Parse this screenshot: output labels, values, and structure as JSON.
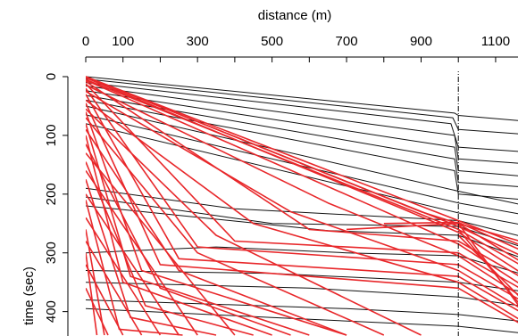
{
  "chart_data": {
    "type": "line",
    "title": "",
    "xlabel": "distance (m)",
    "ylabel": "time (sec)",
    "xlim": [
      0,
      1220
    ],
    "ylim": [
      0,
      440
    ],
    "y_inverted": true,
    "x_axis_position": "top",
    "x_ticks": [
      0,
      100,
      300,
      500,
      700,
      900,
      1100
    ],
    "x_minor_ticks": [
      0,
      100,
      200,
      300,
      400,
      500,
      600,
      700,
      800,
      900,
      1000,
      1100,
      1200
    ],
    "y_ticks": [
      0,
      100,
      200,
      300,
      400
    ],
    "reference_line_x": 1000,
    "grid": false,
    "legend": "none",
    "colors": {
      "series_a": "#111111",
      "series_b": "#e8272a",
      "reference": "#000000"
    },
    "series": [
      {
        "color": "series_a",
        "trajectories": [
          [
            [
              0,
              0
            ],
            [
              990,
              62
            ],
            [
              1000,
              66
            ],
            [
              1220,
              78
            ]
          ],
          [
            [
              0,
              4
            ],
            [
              985,
              70
            ],
            [
              1000,
              90
            ],
            [
              1220,
              100
            ]
          ],
          [
            [
              0,
              10
            ],
            [
              980,
              80
            ],
            [
              1000,
              120
            ],
            [
              1220,
              130
            ]
          ],
          [
            [
              0,
              16
            ],
            [
              990,
              100
            ],
            [
              1000,
              140
            ],
            [
              1220,
              150
            ]
          ],
          [
            [
              0,
              24
            ],
            [
              990,
              120
            ],
            [
              1000,
              160
            ],
            [
              1220,
              172
            ]
          ],
          [
            [
              0,
              32
            ],
            [
              990,
              140
            ],
            [
              1000,
              180
            ],
            [
              1220,
              190
            ]
          ],
          [
            [
              0,
              40
            ],
            [
              990,
              160
            ],
            [
              1000,
              200
            ],
            [
              1220,
              212
            ]
          ],
          [
            [
              0,
              50
            ],
            [
              1000,
              195
            ],
            [
              1220,
              225
            ]
          ],
          [
            [
              0,
              65
            ],
            [
              1000,
              215
            ],
            [
              1220,
              240
            ]
          ],
          [
            [
              0,
              80
            ],
            [
              1000,
              232
            ],
            [
              1220,
              258
            ]
          ],
          [
            [
              0,
              190
            ],
            [
              400,
              225
            ],
            [
              1000,
              245
            ],
            [
              1220,
              280
            ]
          ],
          [
            [
              0,
              205
            ],
            [
              500,
              250
            ],
            [
              1000,
              255
            ],
            [
              1220,
              300
            ]
          ],
          [
            [
              0,
              220
            ],
            [
              650,
              262
            ],
            [
              1000,
              270
            ],
            [
              1220,
              320
            ]
          ],
          [
            [
              0,
              300
            ],
            [
              350,
              290
            ],
            [
              700,
              300
            ],
            [
              1000,
              305
            ],
            [
              1220,
              345
            ]
          ],
          [
            [
              0,
              330
            ],
            [
              500,
              335
            ],
            [
              1000,
              350
            ],
            [
              1220,
              370
            ]
          ],
          [
            [
              0,
              350
            ],
            [
              600,
              360
            ],
            [
              1000,
              375
            ],
            [
              1220,
              395
            ]
          ],
          [
            [
              0,
              380
            ],
            [
              700,
              395
            ],
            [
              1000,
              405
            ],
            [
              1220,
              420
            ]
          ],
          [
            [
              0,
              395
            ],
            [
              500,
              410
            ],
            [
              1000,
              425
            ],
            [
              1220,
              440
            ]
          ]
        ]
      },
      {
        "color": "series_b",
        "trajectories": [
          [
            [
              0,
              0
            ],
            [
              1000,
              245
            ],
            [
              1220,
              300
            ]
          ],
          [
            [
              0,
              0
            ],
            [
              1000,
              255
            ],
            [
              1220,
              320
            ]
          ],
          [
            [
              0,
              5
            ],
            [
              1000,
              260
            ],
            [
              1220,
              340
            ]
          ],
          [
            [
              0,
              8
            ],
            [
              600,
              260
            ],
            [
              1000,
              280
            ],
            [
              1220,
              360
            ]
          ],
          [
            [
              0,
              12
            ],
            [
              400,
              280
            ],
            [
              1000,
              300
            ],
            [
              1220,
              380
            ]
          ],
          [
            [
              0,
              20
            ],
            [
              300,
              290
            ],
            [
              1000,
              320
            ],
            [
              1220,
              400
            ]
          ],
          [
            [
              0,
              30
            ],
            [
              250,
              310
            ],
            [
              1000,
              340
            ],
            [
              1220,
              420
            ]
          ],
          [
            [
              0,
              45
            ],
            [
              200,
              320
            ],
            [
              1000,
              360
            ],
            [
              1220,
              440
            ]
          ],
          [
            [
              0,
              60
            ],
            [
              150,
              330
            ],
            [
              700,
              440
            ]
          ],
          [
            [
              0,
              80
            ],
            [
              120,
              340
            ],
            [
              600,
              440
            ]
          ],
          [
            [
              0,
              100
            ],
            [
              100,
              350
            ],
            [
              500,
              440
            ]
          ],
          [
            [
              0,
              130
            ],
            [
              400,
              440
            ]
          ],
          [
            [
              0,
              160
            ],
            [
              300,
              440
            ]
          ],
          [
            [
              0,
              200
            ],
            [
              250,
              440
            ]
          ],
          [
            [
              0,
              240
            ],
            [
              200,
              440
            ]
          ],
          [
            [
              0,
              280
            ],
            [
              150,
              440
            ]
          ],
          [
            [
              0,
              320
            ],
            [
              100,
              440
            ]
          ],
          [
            [
              0,
              360
            ],
            [
              60,
              440
            ]
          ],
          [
            [
              700,
              260
            ],
            [
              1000,
              250
            ],
            [
              1220,
              290
            ]
          ],
          [
            [
              800,
              250
            ],
            [
              1000,
              248
            ],
            [
              1220,
              310
            ]
          ],
          [
            [
              0,
              0
            ],
            [
              900,
              230
            ],
            [
              1000,
              250
            ],
            [
              1220,
              335
            ]
          ],
          [
            [
              0,
              2
            ],
            [
              850,
              225
            ],
            [
              1000,
              265
            ],
            [
              1220,
              355
            ]
          ],
          [
            [
              0,
              6
            ],
            [
              750,
              215
            ],
            [
              1000,
              285
            ],
            [
              1220,
              375
            ]
          ],
          [
            [
              0,
              14
            ],
            [
              650,
              215
            ],
            [
              1000,
              305
            ],
            [
              1220,
              395
            ]
          ],
          [
            [
              0,
              25
            ],
            [
              550,
              230
            ],
            [
              1000,
              330
            ],
            [
              1220,
              415
            ]
          ],
          [
            [
              0,
              40
            ],
            [
              450,
              250
            ],
            [
              1000,
              350
            ],
            [
              1220,
              435
            ]
          ],
          [
            [
              0,
              55
            ],
            [
              350,
              270
            ],
            [
              900,
              440
            ]
          ],
          [
            [
              0,
              70
            ],
            [
              300,
              300
            ],
            [
              800,
              440
            ]
          ],
          [
            [
              0,
              90
            ],
            [
              250,
              330
            ],
            [
              700,
              440
            ]
          ],
          [
            [
              0,
              115
            ],
            [
              200,
              360
            ],
            [
              550,
              440
            ]
          ],
          [
            [
              0,
              145
            ],
            [
              160,
              390
            ],
            [
              450,
              440
            ]
          ],
          [
            [
              0,
              175
            ],
            [
              120,
              410
            ],
            [
              350,
              440
            ]
          ],
          [
            [
              0,
              210
            ],
            [
              90,
              430
            ],
            [
              260,
              440
            ]
          ],
          [
            [
              0,
              260
            ],
            [
              50,
              440
            ]
          ],
          [
            [
              0,
              300
            ],
            [
              30,
              440
            ]
          ],
          [
            [
              1000,
              250
            ],
            [
              1220,
              440
            ]
          ],
          [
            [
              1000,
              260
            ],
            [
              1220,
              430
            ]
          ],
          [
            [
              1000,
              270
            ],
            [
              1220,
              410
            ]
          ]
        ]
      }
    ]
  }
}
